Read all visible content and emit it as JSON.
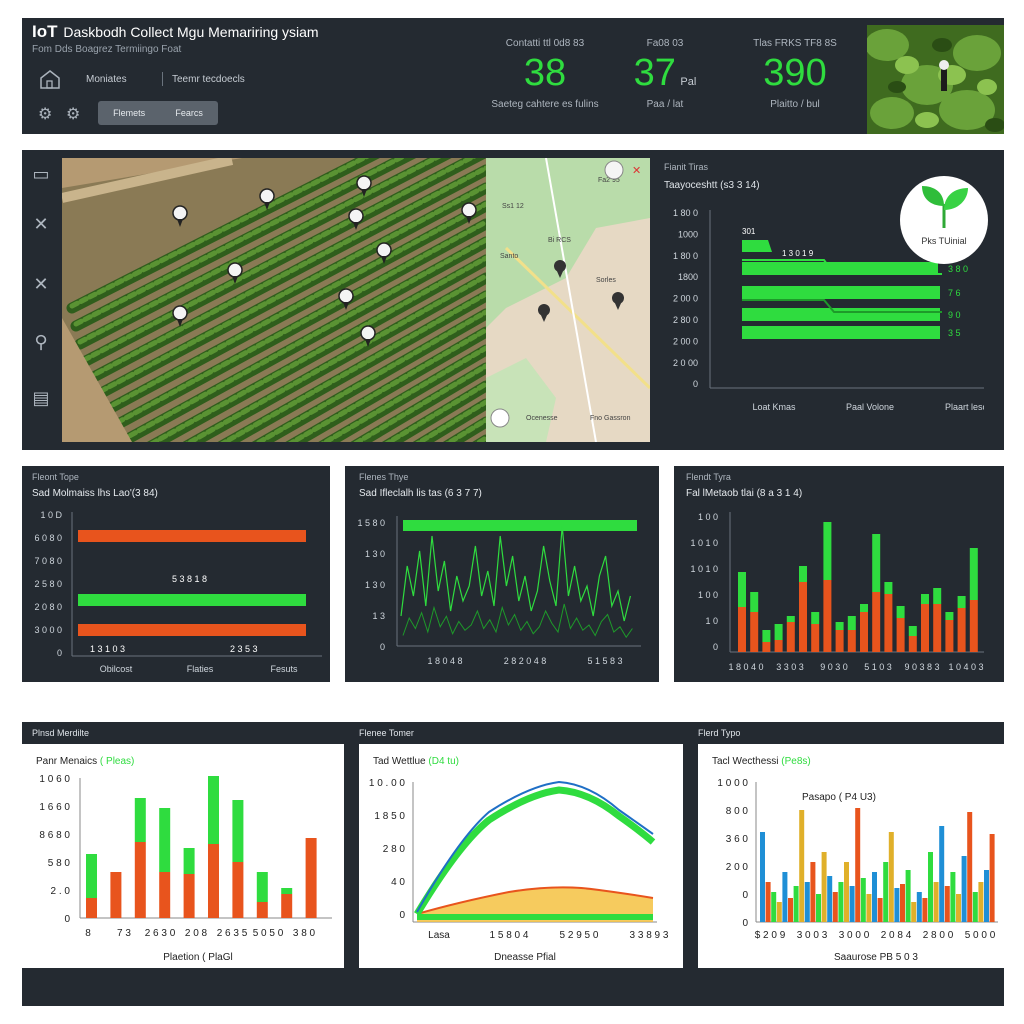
{
  "header": {
    "title_prefix": "IoT",
    "title": "Daskbodh Collect Mgu Memariring ysiam",
    "subtitle": "Fom Dds Boagrez Termiingo Foat",
    "nav1": "Moniates",
    "nav2": "Teemr tecdoecls",
    "seg_left": "Flemets",
    "seg_right": "Fearcs"
  },
  "kpis": [
    {
      "label": "Contatti ttl 0d8 83",
      "value": "38",
      "unit": "",
      "sub": "Saeteg cahtere es fulins"
    },
    {
      "label": "Fa08 03",
      "value": "37",
      "unit": "Pal",
      "sub": "Paa / lat"
    },
    {
      "label": "Tlas FRKS TF8 8S",
      "value": "390",
      "unit": "",
      "sub": "Plaitto / bul"
    }
  ],
  "map_panel": {
    "minimap_labels": [
      "Fa2 95",
      "Ss1 12",
      "Santo",
      "Bi RCS",
      "Sorles",
      "Ocenesse",
      "Fno Gassron"
    ],
    "stat_title": "Fianit Tiras",
    "stat_sub": "Taayoceshtt (s3 3 14)",
    "badge_label": "Pks TUinial",
    "y_ticks": [
      "1 80 0",
      "1000",
      "1 80 0",
      "1800",
      "2 00 0",
      "2 80 0",
      "2 00 0",
      "2 0 00",
      "0"
    ],
    "bar_labels": [
      "3 8 0",
      "7 6",
      "9 0",
      "3 5"
    ],
    "top_bar_labels": [
      "301",
      "1 3 0 1 9"
    ],
    "x_labels": [
      "Loat Kmas",
      "Paal Volone",
      "Plaart lesc"
    ]
  },
  "panel1": {
    "title": "Fleont Tope",
    "subtitle": "Sad Molmaiss lhs Lao'(3 84)",
    "y_ticks": [
      "1 0 D",
      "6 0 8 0",
      "7 0 8 0",
      "2 5 8 0",
      "2 0 8 0",
      "3 0 0 0",
      "0"
    ],
    "annotations": [
      "5 3 8 1 8",
      "1 3 1 0 3",
      "2 3 5 3"
    ],
    "x_labels": [
      "Obilcost",
      "Flaties",
      "Fesuts"
    ],
    "bar_colors": [
      "#e8541d",
      "#2fdc3f",
      "#e8541d"
    ]
  },
  "panel2": {
    "title": "Flenes Thye",
    "subtitle": "Sad Ifleclalh lis tas (6 3 7 7)",
    "y_ticks": [
      "1 5 8 0",
      "1 3 0",
      "1 3 0",
      "1 3",
      "0"
    ],
    "x_labels": [
      "1 8 0 4 8",
      "2 8 2 0 4 8",
      "5 1 5 8 3"
    ]
  },
  "panel3": {
    "title": "Flendt Tyra",
    "subtitle": "Fal lMetaob tlai (8 a 3 1 4)",
    "y_ticks": [
      "1 0 0",
      "1 0 1 0",
      "1 0 1 0",
      "1 0 0",
      "1 0",
      "0"
    ],
    "x_labels": [
      "1 8 0 4 0",
      "3 3 0 3",
      "9 0 3 0",
      "5 1 0 3",
      "9 0 3 8 3",
      "1 0 4 0 3"
    ]
  },
  "bottom": {
    "head1": "Plnsd Merdilte",
    "head2": "Flenee Tomer",
    "head3": "Flerd Typo",
    "b1": {
      "title": "Panr Menaics",
      "title_em": "( Pleas)",
      "y_ticks": [
        "1 0 6 0",
        "1 6 6 0",
        "8 6 8 0",
        "5 8 0",
        "2 . 0",
        "0"
      ],
      "x_labels": [
        "8",
        "7 3",
        "2 6 3 0",
        "2 0 8",
        "2 6 3 5",
        "5 0 5 0",
        "3 8 0"
      ],
      "xlabel": "Plaetion ( PlaGl"
    },
    "b2": {
      "title": "Tad Wettlue",
      "title_em": "(D4 tu)",
      "y_ticks": [
        "1 0 . 0 0",
        "1 8 5 0",
        "2 8 0",
        "4 0",
        "0"
      ],
      "x_labels": [
        "Lasa",
        "1 5 8 0 4",
        "5 2 9 5 0",
        "3 3 8 9 3"
      ],
      "xlabel": "Dneasse Pfial"
    },
    "b3": {
      "title": "Tacl Wecthessi",
      "title_em": "(Pe8s)",
      "inner": "Pasapo ( P4 U3)",
      "y_ticks": [
        "1 0 0 0",
        "8 0 0",
        "3 6 0",
        "2 0 0",
        "0",
        "0"
      ],
      "x_labels": [
        "$ 2 0 9",
        "3 0 0 3",
        "3 0 0 0",
        "2 0 8 4",
        "2 8 0 0",
        "5 0 0 0"
      ],
      "xlabel": "Saaurose PB 5 0 3"
    }
  },
  "colors": {
    "green": "#2fdc3f",
    "orange": "#e8541d",
    "blue": "#1f8fd6",
    "dark": "#242a31"
  }
}
